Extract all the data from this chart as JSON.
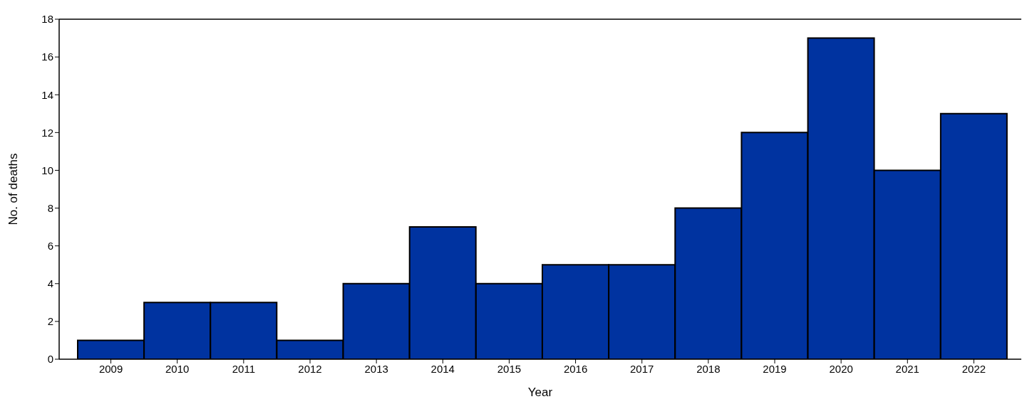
{
  "chart_data": {
    "type": "bar",
    "xlabel": "Year",
    "ylabel": "No. of deaths",
    "categories": [
      "2009",
      "2010",
      "2011",
      "2012",
      "2013",
      "2014",
      "2015",
      "2016",
      "2017",
      "2018",
      "2019",
      "2020",
      "2021",
      "2022"
    ],
    "values": [
      1,
      3,
      3,
      1,
      4,
      7,
      4,
      5,
      5,
      8,
      12,
      17,
      10,
      13
    ],
    "color": "#0033a0",
    "ylim": [
      0,
      18
    ],
    "yticks": [
      0,
      2,
      4,
      6,
      8,
      10,
      12,
      14,
      16,
      18
    ],
    "grid": false,
    "legend": false
  }
}
